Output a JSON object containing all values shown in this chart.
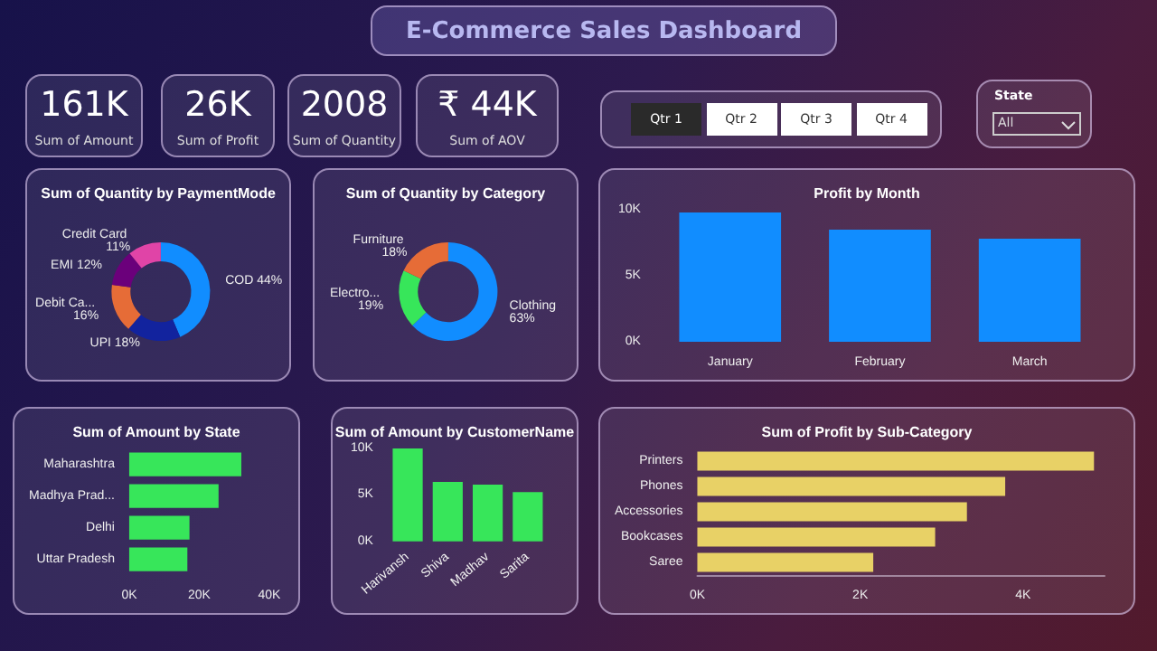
{
  "chart_data": [
    {
      "type": "other",
      "title": "E-Commerce Sales Dashboard",
      "annotations": [
        "161K",
        "Sum of Amount",
        "26K",
        "Sum of Profit",
        "2008",
        "Sum of Quantity",
        "₹ 44K",
        "Sum of AOV",
        "Qtr 1",
        "Qtr 2",
        "Qtr 3",
        "Qtr 4",
        "State",
        "All"
      ]
    },
    {
      "type": "donut",
      "title": "Sum of Quantity by PaymentMode",
      "categories": [
        "COD",
        "UPI",
        "Debit Ca...",
        "EMI",
        "Credit Card"
      ],
      "values": [
        44,
        18,
        16,
        12,
        11
      ],
      "value_labels": [
        "44%",
        "18%",
        "16%",
        "12%",
        "11%"
      ],
      "colors": [
        "#118dff",
        "#12239e",
        "#e66c37",
        "#6b007b",
        "#e044a7"
      ],
      "legend": false
    },
    {
      "type": "donut",
      "title": "Sum of Quantity by Category",
      "categories": [
        "Clothing",
        "Electro...",
        "Furniture"
      ],
      "values": [
        63,
        19,
        18
      ],
      "value_labels": [
        "63%",
        "19%",
        "18%"
      ],
      "colors": [
        "#118dff",
        "#37e65a",
        "#e66c37"
      ],
      "legend": false
    },
    {
      "type": "bar",
      "title": "Profit by Month",
      "categories": [
        "January",
        "February",
        "March"
      ],
      "values": [
        9800,
        8500,
        7800
      ],
      "color": "#118dff",
      "ylim": [
        0,
        10000
      ],
      "yticks": [
        {
          "value": 0,
          "label": "0K"
        },
        {
          "value": 5000,
          "label": "5K"
        },
        {
          "value": 10000,
          "label": "10K"
        }
      ],
      "grid": false,
      "legend": false
    },
    {
      "type": "bar",
      "title": "Sum of Amount by State",
      "orientation": "horizontal",
      "categories": [
        "Maharashtra",
        "Madhya Prad...",
        "Delhi",
        "Uttar Pradesh"
      ],
      "values": [
        32000,
        25500,
        17200,
        16600
      ],
      "color": "#37e65a",
      "xlim": [
        0,
        40000
      ],
      "xticks": [
        {
          "value": 0,
          "label": "0K"
        },
        {
          "value": 20000,
          "label": "20K"
        },
        {
          "value": 40000,
          "label": "40K"
        }
      ],
      "grid": false,
      "legend": false
    },
    {
      "type": "bar",
      "title": "Sum of Amount by CustomerName",
      "categories": [
        "Harivansh",
        "Shiva",
        "Madhav",
        "Sarita"
      ],
      "values": [
        10000,
        6400,
        6100,
        5300
      ],
      "color": "#37e65a",
      "ylim": [
        0,
        10000
      ],
      "yticks": [
        {
          "value": 0,
          "label": "0K"
        },
        {
          "value": 5000,
          "label": "5K"
        },
        {
          "value": 10000,
          "label": "10K"
        }
      ],
      "grid": false,
      "legend": false
    },
    {
      "type": "bar",
      "title": "Sum of Profit by Sub-Category",
      "orientation": "horizontal",
      "categories": [
        "Printers",
        "Phones",
        "Accessories",
        "Bookcases",
        "Saree"
      ],
      "values": [
        4870,
        3780,
        3310,
        2920,
        2160
      ],
      "color": "#e8d166",
      "xlim": [
        0,
        5000
      ],
      "xticks": [
        {
          "value": 0,
          "label": "0K"
        },
        {
          "value": 2000,
          "label": "2K"
        },
        {
          "value": 4000,
          "label": "4K"
        }
      ],
      "grid": false,
      "legend": false
    }
  ]
}
